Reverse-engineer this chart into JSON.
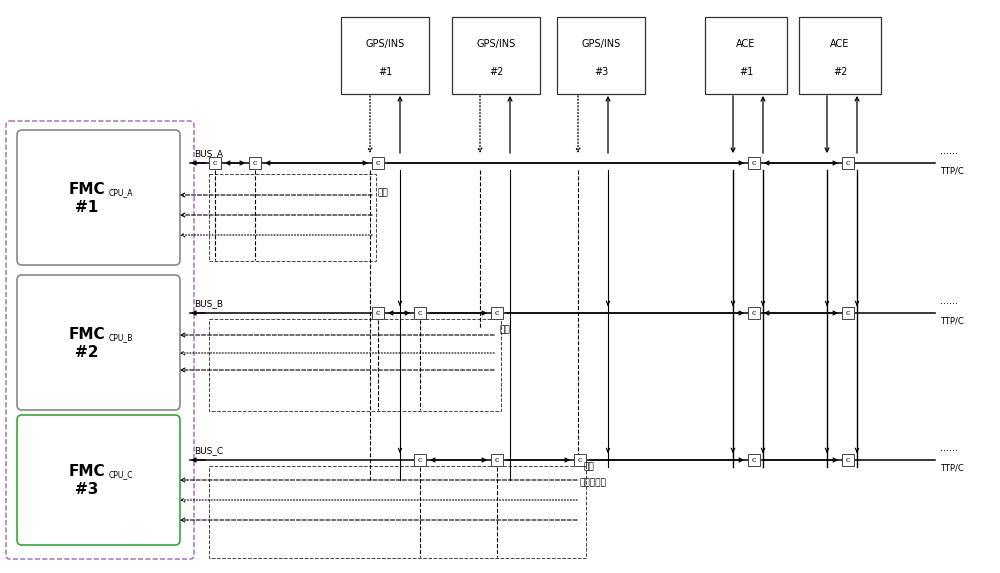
{
  "fig_width": 10.0,
  "fig_height": 5.73,
  "bg_color": "#ffffff",
  "fmc_labels": [
    "FMC\n#1",
    "FMC\n#2",
    "FMC\n#3"
  ],
  "cpu_labels": [
    "CPU_A",
    "CPU_B",
    "CPU_C"
  ],
  "top_labels": [
    "GPS/INS\n#1",
    "GPS/INS\n#2",
    "GPS/INS\n#3",
    "ACE\n#1",
    "ACE\n#2"
  ],
  "bus_labels": [
    "BUS_A",
    "BUS_B",
    "BUS_C"
  ],
  "serial_labels": [
    "串口",
    "串口",
    "串口"
  ],
  "bus_coupler": "总线耦合器",
  "ttp_label": "TTP/C",
  "dots": "......",
  "fmc_outer_color": "#aaaaaa",
  "fmc_inner_colors": [
    "#888888",
    "#888888",
    "#33aa33"
  ],
  "fmc_outer_dash_color": "#9966bb"
}
